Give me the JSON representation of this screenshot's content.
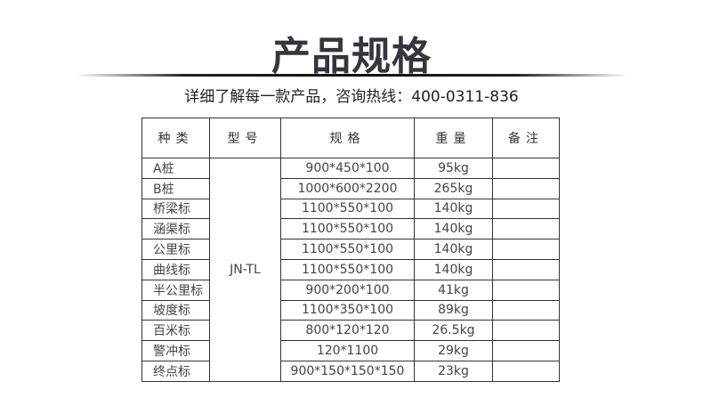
{
  "title": "产品规格",
  "subtitle": "详细了解每一款产品，咨询热线：400-0311-836",
  "table": {
    "headers": [
      "种类",
      "型号",
      "规格",
      "重量",
      "备注"
    ],
    "model": "JN-TL",
    "rows": [
      {
        "kind": "A桩",
        "spec": "900*450*100",
        "weight": "95kg",
        "note": ""
      },
      {
        "kind": "B桩",
        "spec": "1000*600*2200",
        "weight": "265kg",
        "note": ""
      },
      {
        "kind": "桥梁标",
        "spec": "1100*550*100",
        "weight": "140kg",
        "note": ""
      },
      {
        "kind": "涵渠标",
        "spec": "1100*550*100",
        "weight": "140kg",
        "note": ""
      },
      {
        "kind": "公里标",
        "spec": "1100*550*100",
        "weight": "140kg",
        "note": ""
      },
      {
        "kind": "曲线标",
        "spec": "1100*550*100",
        "weight": "140kg",
        "note": ""
      },
      {
        "kind": "半公里标",
        "spec": "900*200*100",
        "weight": "41kg",
        "note": ""
      },
      {
        "kind": "坡度标",
        "spec": "1100*350*100",
        "weight": "89kg",
        "note": ""
      },
      {
        "kind": "百米标",
        "spec": "800*120*120",
        "weight": "26.5kg",
        "note": ""
      },
      {
        "kind": "警冲标",
        "spec": "120*1100",
        "weight": "29kg",
        "note": ""
      },
      {
        "kind": "终点标",
        "spec": "900*150*150*150",
        "weight": "23kg",
        "note": ""
      }
    ]
  }
}
